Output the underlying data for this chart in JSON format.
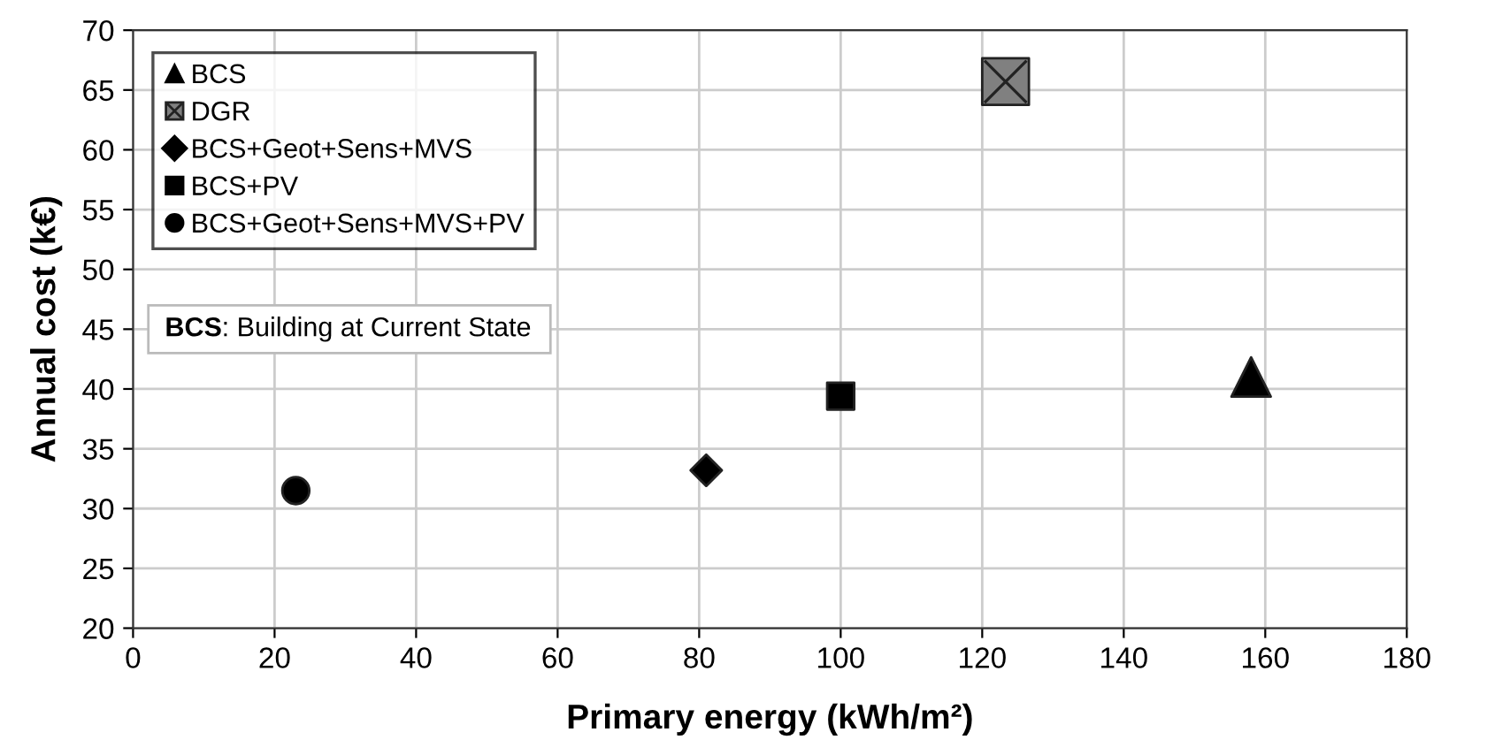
{
  "chart_data": {
    "type": "scatter",
    "xlabel": "Primary energy (kWh/m²)",
    "ylabel": "Annual cost (k€)",
    "xlim": [
      0,
      180
    ],
    "xticks": [
      0,
      20,
      40,
      60,
      80,
      100,
      120,
      140,
      160,
      180
    ],
    "ylim": [
      20,
      70
    ],
    "yticks": [
      20,
      25,
      30,
      35,
      40,
      45,
      50,
      55,
      60,
      65,
      70
    ],
    "grid": true,
    "legend": "top left",
    "annotations": [
      "BCS: Building at Current State"
    ],
    "series": [
      {
        "name": "BCS",
        "color": "#000000",
        "marker": "triangle",
        "x": [
          158
        ],
        "values": [
          41
        ]
      },
      {
        "name": "DGR",
        "color": "#808080",
        "x": [
          123.3
        ],
        "values": [
          65.7
        ]
      },
      {
        "name": "BCS+Geot+Sens+MVS",
        "color": "#000000",
        "marker": "diamond",
        "x": [
          81
        ],
        "values": [
          33.2
        ]
      },
      {
        "name": "BCS+PV",
        "color": "#000000",
        "marker": "square",
        "x": [
          100
        ],
        "values": [
          39.4
        ]
      },
      {
        "name": "BCS+Geot+Sens+MVS+PV",
        "color": "#000000",
        "marker": "circle",
        "x": [
          23
        ],
        "values": [
          31.5
        ]
      }
    ]
  }
}
